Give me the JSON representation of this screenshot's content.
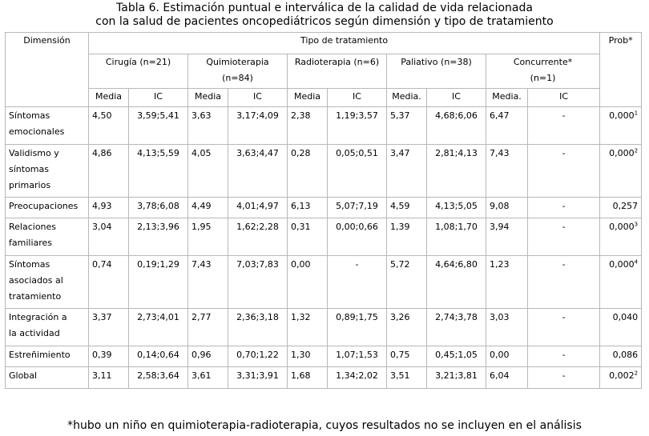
{
  "title_line1": "Tabla 6. Estimación puntual e interválica  de la calidad de vida relacionada",
  "title_line2": "con la salud de pacientes oncopediátricos según dimensión y tipo de tratamiento",
  "headers": {
    "dimension": "Dimensión",
    "tipo": "Tipo de tratamiento",
    "prob": "Prob*",
    "groups": [
      {
        "line1": "Cirugía (n=21)",
        "line2": ""
      },
      {
        "line1": "Quimioterapia",
        "line2": "(n=84)"
      },
      {
        "line1": "Radioterapia (n=6)",
        "line2": ""
      },
      {
        "line1": "Paliativo (n=38)",
        "line2": ""
      },
      {
        "line1": "Concurrente*",
        "line2": "(n=1)"
      }
    ],
    "sub": [
      "Media",
      "IC",
      "Media",
      "IC",
      "Media",
      "IC",
      "Media.",
      "IC",
      "Media.",
      "IC"
    ]
  },
  "rows": [
    {
      "dim": [
        "Síntomas",
        "emocionales"
      ],
      "vals": [
        "4,50",
        "3,59;5,41",
        "3,63",
        "3,17;4,09",
        "2,38",
        "1,19;3,57",
        "5,37",
        "4,68;6,06",
        "6,47",
        "-"
      ],
      "prob": "0,000",
      "sup": "1"
    },
    {
      "dim": [
        "Validismo y",
        "síntomas",
        "primarios"
      ],
      "vals": [
        "4,86",
        "4,13;5,59",
        "4,05",
        "3,63;4,47",
        "0,28",
        "0,05;0,51",
        "3,47",
        "2,81;4,13",
        "7,43",
        "-"
      ],
      "prob": "0,000",
      "sup": "2"
    },
    {
      "dim": [
        "Preocupaciones"
      ],
      "vals": [
        "4,93",
        "3,78;6,08",
        "4,49",
        "4,01;4,97",
        "6,13",
        "5,07;7,19",
        "4,59",
        "4,13;5,05",
        "9,08",
        "-"
      ],
      "prob": "0,257",
      "sup": ""
    },
    {
      "dim": [
        "Relaciones",
        "familiares"
      ],
      "vals": [
        "3,04",
        "2,13;3,96",
        "1,95",
        "1,62;2,28",
        "0,31",
        "0,00;0,66",
        "1,39",
        "1,08;1,70",
        "3,94",
        "-"
      ],
      "prob": "0,000",
      "sup": "3"
    },
    {
      "dim": [
        "Síntomas",
        "asociados al",
        "tratamiento"
      ],
      "vals": [
        "0,74",
        "0,19;1,29",
        "7,43",
        "7,03;7,83",
        "0,00",
        "-",
        "5,72",
        "4,64;6,80",
        "1,23",
        "-"
      ],
      "prob": "0,000",
      "sup": "4"
    },
    {
      "dim": [
        "Integración a",
        "la actividad"
      ],
      "vals": [
        "3,37",
        "2,73;4,01",
        "2,77",
        "2,36;3,18",
        "1,32",
        "0,89;1,75",
        "3,26",
        "2,74;3,78",
        "3,03",
        "-"
      ],
      "prob": "0,040",
      "sup": ""
    },
    {
      "dim": [
        "Estreñimiento"
      ],
      "vals": [
        "0,39",
        "0,14;0,64",
        "0,96",
        "0,70;1,22",
        "1,30",
        "1,07;1,53",
        "0,75",
        "0,45;1,05",
        "0,00",
        "-"
      ],
      "prob": "0,086",
      "sup": ""
    },
    {
      "dim": [
        "Global"
      ],
      "vals": [
        "3,11",
        "2,58;3,64",
        "3,61",
        "3,31;3,91",
        "1,68",
        "1,34;2,02",
        "3,51",
        "3,21;3,81",
        "6,04",
        "-"
      ],
      "prob": "0,002",
      "sup": "2"
    }
  ],
  "footnote": "*hubo un niño en quimioterapia-radioterapia, cuyos resultados no se incluyen en el análisis"
}
